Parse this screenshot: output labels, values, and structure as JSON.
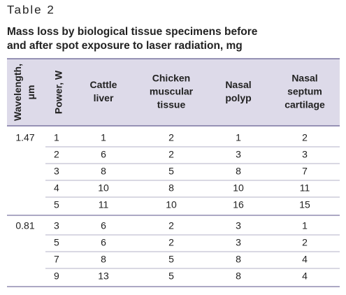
{
  "label": "Table 2",
  "title": [
    "Mass loss by biological tissue specimens before",
    "and after spot exposure to laser radiation, mg"
  ],
  "table": {
    "header": [
      [
        "Wavelength,",
        "μm"
      ],
      [
        "Power, W"
      ],
      [
        "Cattle",
        "liver"
      ],
      [
        "Chicken",
        "muscular",
        "tissue"
      ],
      [
        "Nasal",
        "polyp"
      ],
      [
        "Nasal",
        "septum",
        "cartilage"
      ]
    ],
    "groups": [
      {
        "wavelength": "1.47",
        "rows": [
          [
            1,
            1,
            2,
            1,
            2
          ],
          [
            2,
            6,
            2,
            3,
            3
          ],
          [
            3,
            8,
            5,
            8,
            7
          ],
          [
            4,
            10,
            8,
            10,
            11
          ],
          [
            5,
            11,
            10,
            16,
            15
          ]
        ]
      },
      {
        "wavelength": "0.81",
        "rows": [
          [
            3,
            6,
            2,
            3,
            1
          ],
          [
            5,
            6,
            2,
            3,
            2
          ],
          [
            7,
            8,
            5,
            8,
            4
          ],
          [
            9,
            13,
            5,
            8,
            4
          ]
        ]
      }
    ]
  }
}
